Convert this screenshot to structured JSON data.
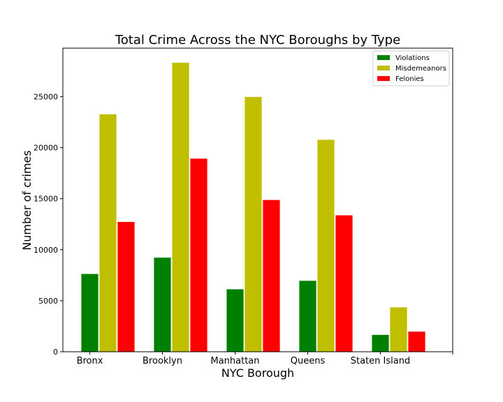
{
  "chart_data": {
    "type": "bar",
    "title": "Total Crime Across the NYC Boroughs by Type",
    "xlabel": "NYC Borough",
    "ylabel": "Number of crimes",
    "categories": [
      "Bronx",
      "Brooklyn",
      "Manhattan",
      "Queens",
      "Staten Island"
    ],
    "series": [
      {
        "name": "Violations",
        "color": "#008000",
        "values": [
          7650,
          9250,
          6150,
          6980,
          1680
        ]
      },
      {
        "name": "Misdemeanors",
        "color": "#bfbf00",
        "values": [
          23300,
          28350,
          25000,
          20800,
          4380
        ]
      },
      {
        "name": "Felonies",
        "color": "#ff0000",
        "values": [
          12750,
          18950,
          14900,
          13400,
          2000
        ]
      }
    ],
    "yticks": [
      0,
      5000,
      10000,
      15000,
      20000,
      25000
    ],
    "ylim": [
      0,
      29750
    ],
    "grid": false,
    "legend": "top-right"
  }
}
